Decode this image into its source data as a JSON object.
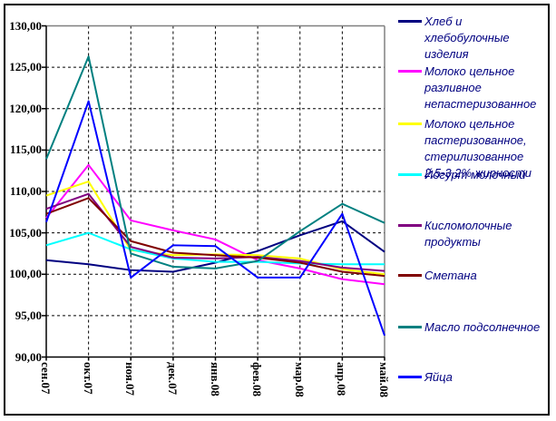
{
  "chart_data": {
    "type": "line",
    "title": "",
    "categories": [
      "сен.07",
      "окт.07",
      "ноя.07",
      "дек.07",
      "янв.08",
      "фев.08",
      "мар.08",
      "апр.08",
      "май.08"
    ],
    "x_axis": {
      "label_rotation_deg": 90
    },
    "y_axis": {
      "min": 90,
      "max": 130,
      "step": 5,
      "tick_labels_top_down": [
        "130,00",
        "125,00",
        "120,00",
        "115,00",
        "110,00",
        "105,00",
        "100,00",
        "95,00",
        "90,00"
      ]
    },
    "grid": {
      "horizontal": "dashed",
      "vertical": "dashed"
    },
    "legend_position": "right",
    "series": [
      {
        "name": "Хлеб и хлебобулочные изделия",
        "color": "#000080",
        "values": [
          101.7,
          101.2,
          100.5,
          100.3,
          101.4,
          102.8,
          104.7,
          106.4,
          102.7
        ]
      },
      {
        "name": "Молоко цельное разливное непастеризованное",
        "color": "#FF00FF",
        "values": [
          106.8,
          113.2,
          106.5,
          105.3,
          104.2,
          101.7,
          100.7,
          99.4,
          98.8
        ]
      },
      {
        "name": "Молоко цельное пастеризованное, стерилизованное 2,5-3,2% жирности",
        "color": "#FFFF00",
        "values": [
          109.5,
          111.2,
          102.9,
          102.3,
          102.4,
          102.3,
          101.9,
          100.6,
          100.0
        ]
      },
      {
        "name": "Йогурт молочный",
        "color": "#00FFFF",
        "values": [
          103.5,
          105.0,
          103.0,
          101.9,
          101.5,
          101.5,
          101.3,
          101.2,
          101.2
        ]
      },
      {
        "name": "Кисломолочные продукты",
        "color": "#800080",
        "values": [
          107.9,
          109.7,
          103.3,
          102.0,
          101.9,
          102.1,
          101.6,
          100.8,
          100.4
        ]
      },
      {
        "name": "Сметана",
        "color": "#800000",
        "values": [
          107.3,
          109.2,
          104.0,
          102.6,
          102.3,
          102.0,
          101.4,
          100.3,
          99.8
        ]
      },
      {
        "name": "Масло подсолнечное",
        "color": "#008080",
        "values": [
          113.9,
          126.3,
          102.5,
          100.9,
          100.7,
          101.6,
          105.2,
          108.5,
          106.2
        ]
      },
      {
        "name": "Яйца",
        "color": "#0000FF",
        "values": [
          106.3,
          120.9,
          99.6,
          103.5,
          103.4,
          99.6,
          99.6,
          107.3,
          92.6
        ]
      }
    ],
    "colors": {
      "background": "#FFFFFF",
      "outer_border": "#000000",
      "plot_border_top_right": "#808080",
      "axis": "#000000",
      "gridline": "#000000",
      "legend_text": "#000080",
      "axis_text": "#000000"
    }
  }
}
